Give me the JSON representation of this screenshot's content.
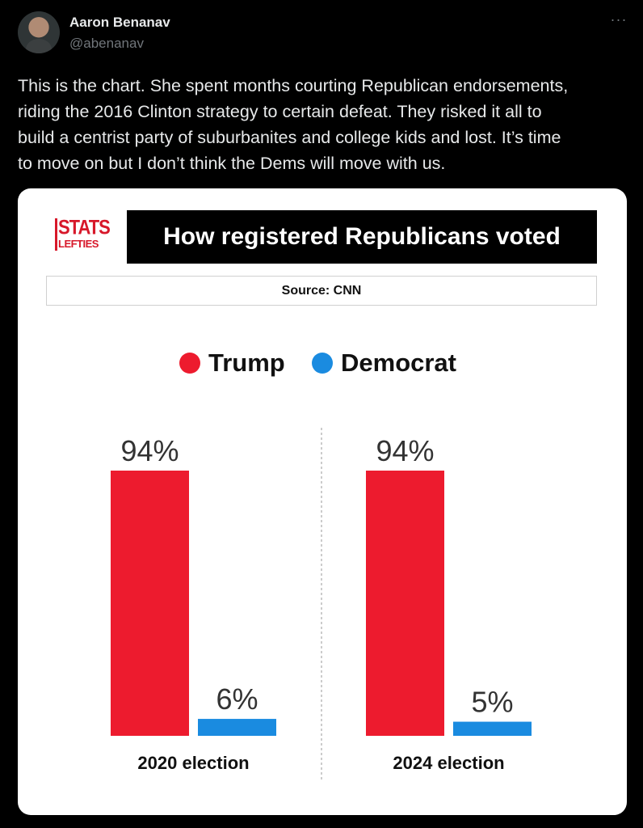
{
  "tweet": {
    "author_name": "Aaron Benanav",
    "author_handle": "@abenanav",
    "more_label": "···",
    "text": "This is the chart. She spent months courting Republican endorsements,\nriding the 2016 Clinton strategy to certain defeat. They risked it all to\nbuild a centrist party of suburbanites and college kids and lost. It’s time\nto move on but I don’t think the Dems will move with us."
  },
  "card": {
    "logo_line1": "STATS",
    "logo_line2": "LEFTIES",
    "title": "How registered Republicans voted",
    "source": "Source: CNN"
  },
  "colors": {
    "trump": "#ed1b2e",
    "democrat": "#1a8be0"
  },
  "chart_data": {
    "type": "bar",
    "title": "How registered Republicans voted",
    "categories": [
      "2020 election",
      "2024 election"
    ],
    "series": [
      {
        "name": "Trump",
        "values": [
          94,
          94
        ],
        "labels": [
          "94%",
          "94%"
        ]
      },
      {
        "name": "Democrat",
        "values": [
          6,
          5
        ],
        "labels": [
          "6%",
          "5%"
        ]
      }
    ],
    "legend": "top-center",
    "ylim": [
      0,
      94
    ],
    "unit": "%"
  }
}
